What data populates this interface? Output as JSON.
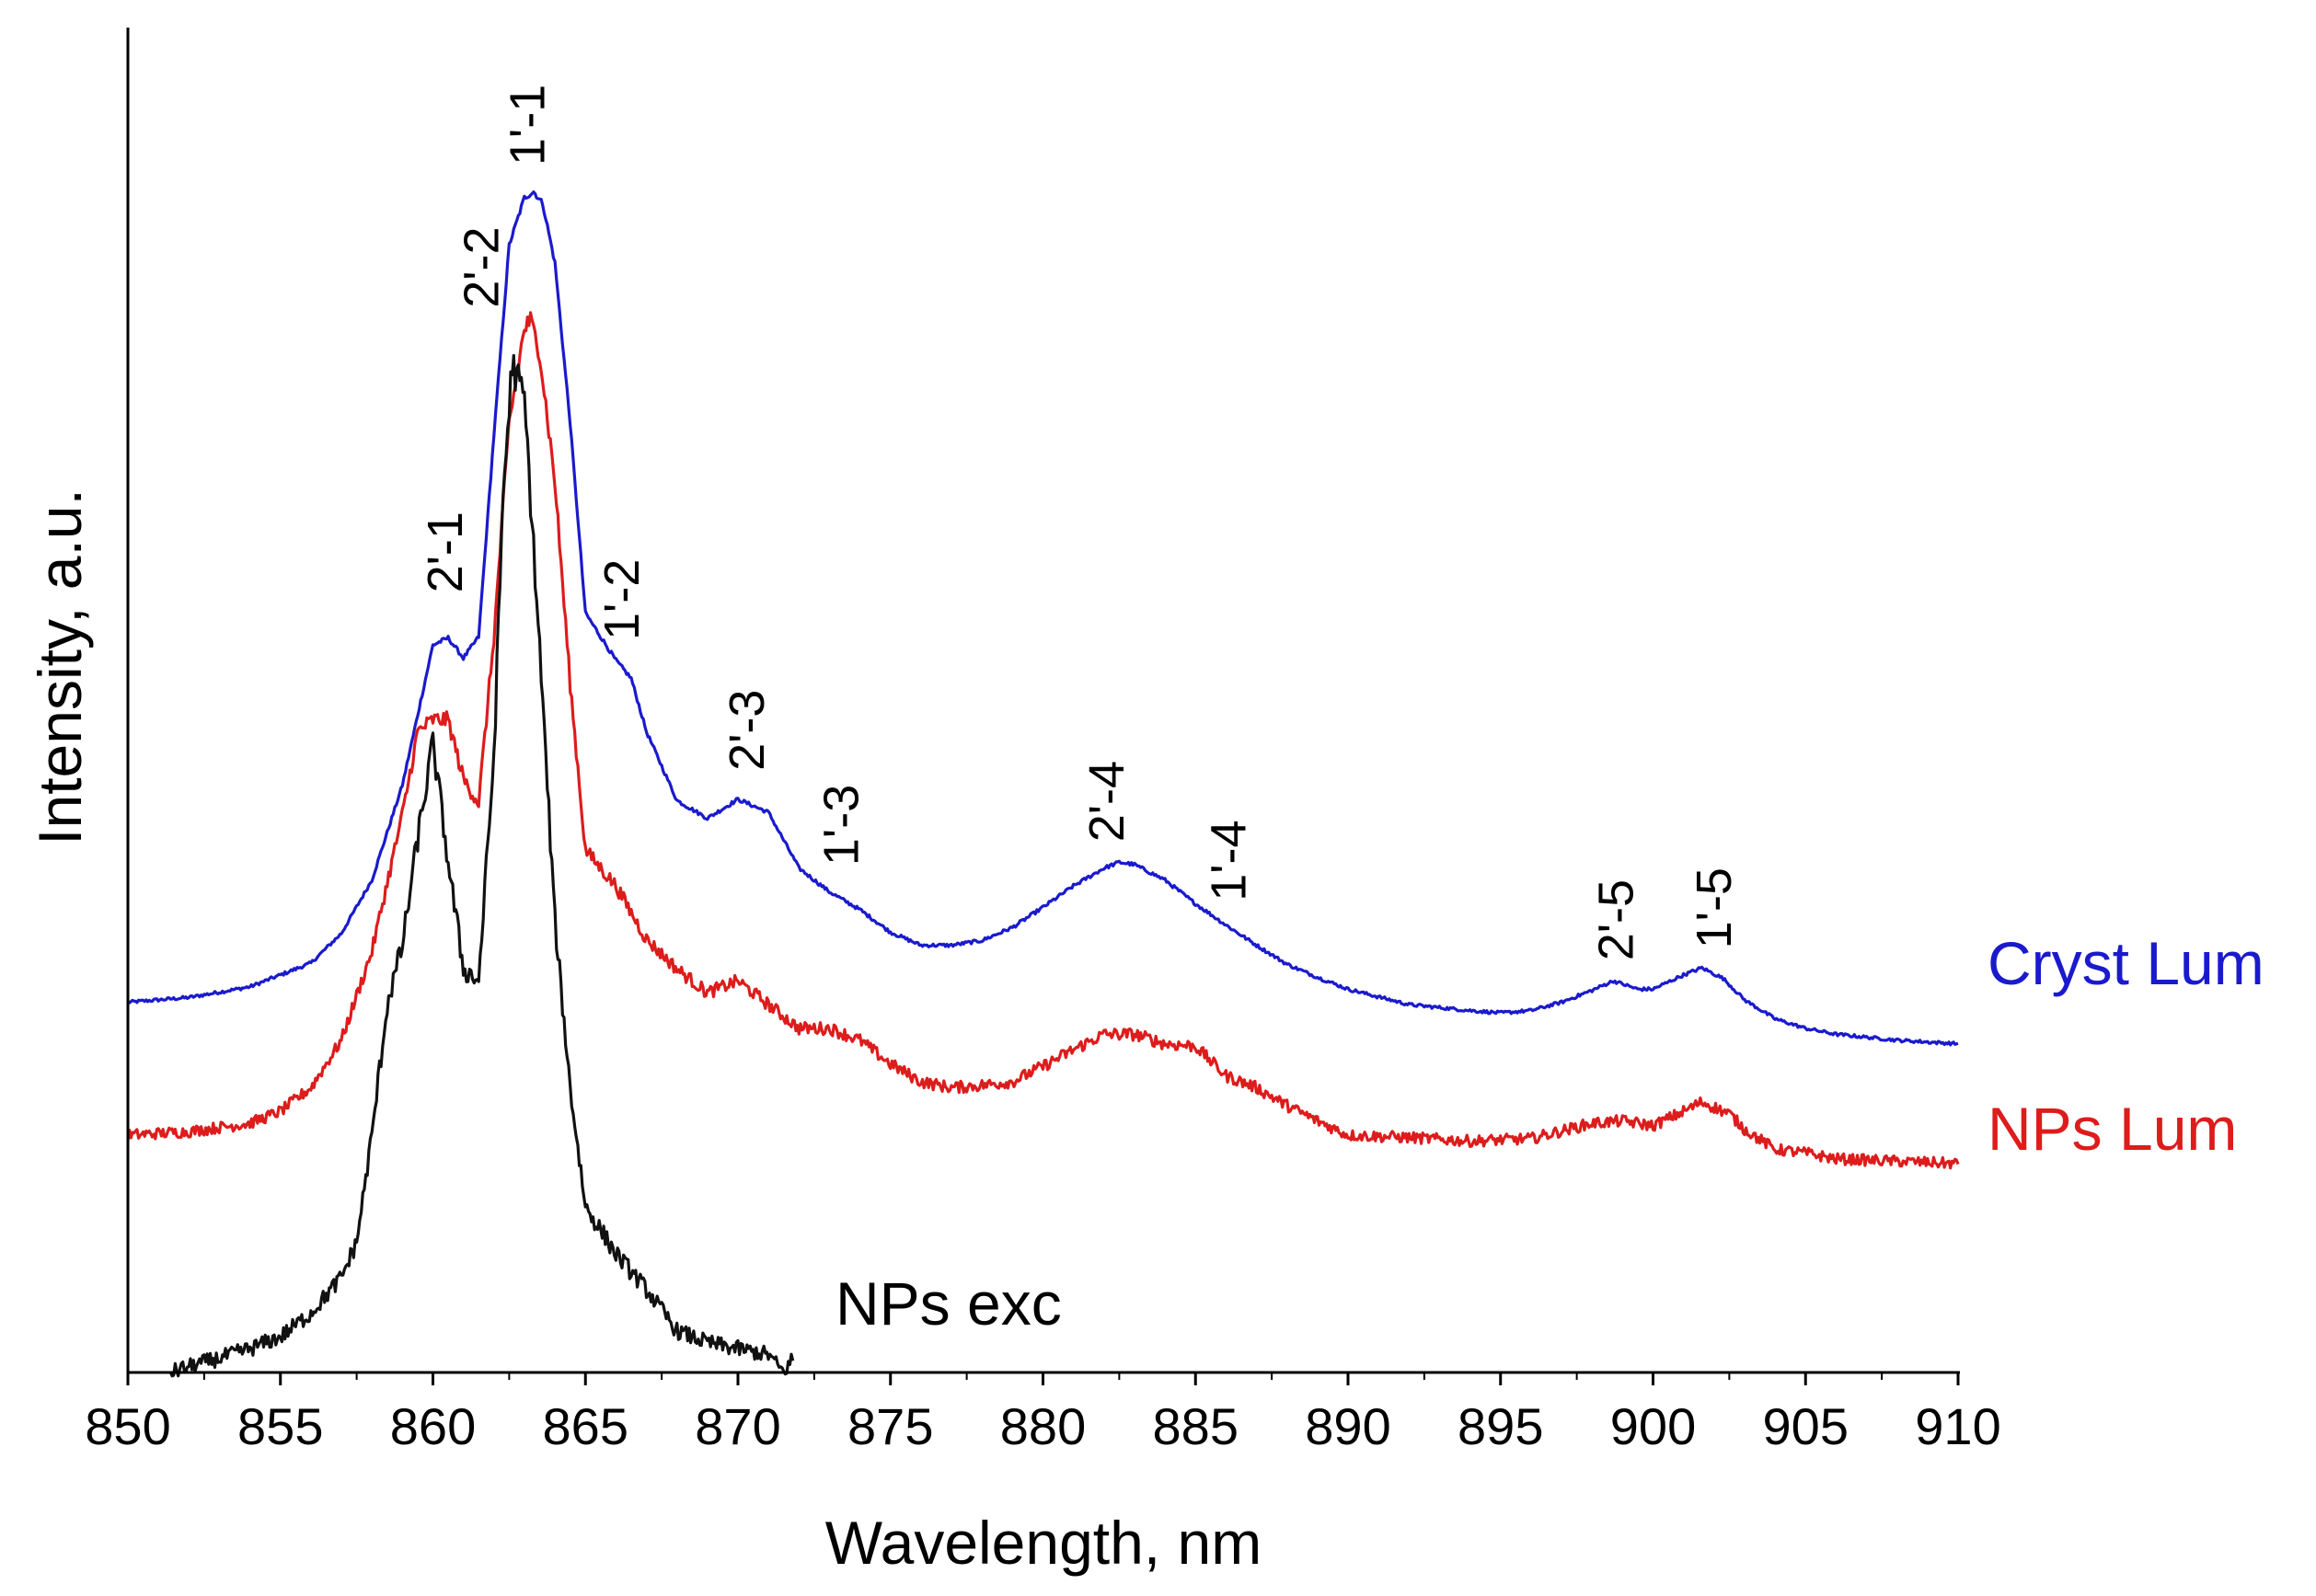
{
  "chart_data": {
    "type": "line",
    "title": "",
    "xlabel": "Wavelength, nm",
    "ylabel": "Intensity, a.u.",
    "xlim": [
      850,
      910
    ],
    "ylim": [
      0,
      1
    ],
    "grid": false,
    "x_ticks": [
      850,
      855,
      860,
      865,
      870,
      875,
      880,
      885,
      890,
      895,
      900,
      905,
      910
    ],
    "x_tick_labels": [
      "850",
      "855",
      "860",
      "865",
      "870",
      "875",
      "880",
      "885",
      "890",
      "895",
      "900",
      "905",
      "910"
    ],
    "series": [
      {
        "name": "Cryst Lum",
        "color": "#1a1acc",
        "noise": 0.0015,
        "x": [
          850,
          852,
          854,
          856,
          857,
          858,
          859,
          860,
          860.5,
          861,
          861.5,
          862,
          862.5,
          863,
          863.3,
          863.6,
          864,
          864.5,
          865,
          866,
          866.5,
          867,
          868,
          869,
          870,
          871,
          872,
          873,
          874,
          875,
          876,
          877,
          878,
          879,
          880,
          881,
          882,
          882.5,
          883,
          884,
          885,
          886,
          887,
          888,
          889,
          890,
          892,
          894,
          895,
          896,
          897,
          898,
          898.7,
          899.5,
          900,
          901,
          901.6,
          902.3,
          903,
          904,
          905,
          906,
          908,
          910
        ],
        "y": [
          0.312,
          0.316,
          0.325,
          0.345,
          0.37,
          0.415,
          0.495,
          0.613,
          0.619,
          0.602,
          0.62,
          0.79,
          0.95,
          0.99,
          0.995,
          0.985,
          0.935,
          0.8,
          0.64,
          0.6,
          0.585,
          0.54,
          0.482,
          0.467,
          0.483,
          0.472,
          0.425,
          0.405,
          0.39,
          0.371,
          0.36,
          0.36,
          0.364,
          0.375,
          0.392,
          0.41,
          0.425,
          0.43,
          0.428,
          0.415,
          0.395,
          0.377,
          0.36,
          0.344,
          0.333,
          0.323,
          0.31,
          0.305,
          0.303,
          0.305,
          0.312,
          0.322,
          0.33,
          0.323,
          0.323,
          0.335,
          0.341,
          0.332,
          0.314,
          0.298,
          0.29,
          0.285,
          0.28,
          0.277
        ]
      },
      {
        "name": "NPs Lum",
        "color": "#dd1c1c",
        "noise": 0.006,
        "x": [
          850,
          852,
          854,
          855,
          856,
          857,
          858,
          859,
          859.5,
          860,
          860.5,
          861,
          861.5,
          862,
          862.5,
          863,
          863.2,
          863.5,
          864,
          864.5,
          865,
          866,
          867,
          868,
          869,
          870,
          871,
          872,
          873,
          874,
          875,
          876,
          877,
          878,
          879,
          880,
          881,
          882,
          883,
          884,
          885,
          886,
          887,
          888,
          889,
          890,
          892,
          894,
          896,
          898,
          899,
          900,
          901,
          901.6,
          902.5,
          903,
          904,
          905,
          906,
          908,
          910
        ],
        "y": [
          0.2,
          0.203,
          0.21,
          0.22,
          0.24,
          0.28,
          0.355,
          0.47,
          0.54,
          0.55,
          0.55,
          0.5,
          0.48,
          0.62,
          0.8,
          0.88,
          0.886,
          0.86,
          0.75,
          0.58,
          0.44,
          0.41,
          0.365,
          0.34,
          0.32,
          0.33,
          0.31,
          0.29,
          0.29,
          0.28,
          0.26,
          0.245,
          0.24,
          0.242,
          0.245,
          0.258,
          0.272,
          0.285,
          0.285,
          0.277,
          0.275,
          0.25,
          0.24,
          0.225,
          0.212,
          0.2,
          0.198,
          0.195,
          0.197,
          0.21,
          0.212,
          0.208,
          0.22,
          0.228,
          0.218,
          0.205,
          0.188,
          0.185,
          0.18,
          0.178,
          0.176
        ]
      },
      {
        "name": "NPs exc",
        "color": "#111111",
        "noise": 0.011,
        "x": [
          851.4,
          852,
          853,
          854,
          855,
          856,
          857,
          857.5,
          858,
          858.5,
          859,
          859.5,
          860,
          860.5,
          861,
          861.5,
          862,
          862.3,
          862.6,
          863,
          863.5,
          864,
          864.5,
          865,
          865.5,
          866,
          867,
          868,
          869,
          870,
          871,
          871.5,
          871.8
        ],
        "y": [
          0.0,
          0.005,
          0.012,
          0.02,
          0.03,
          0.05,
          0.08,
          0.11,
          0.2,
          0.31,
          0.36,
          0.45,
          0.53,
          0.43,
          0.34,
          0.33,
          0.52,
          0.74,
          0.85,
          0.82,
          0.61,
          0.38,
          0.24,
          0.14,
          0.12,
          0.1,
          0.07,
          0.035,
          0.025,
          0.02,
          0.015,
          0.0,
          0.012
        ]
      }
    ],
    "peak_labels": [
      {
        "text": "2'-1",
        "x": 860.4,
        "y": 0.64
      },
      {
        "text": "2'-2",
        "x": 861.6,
        "y": 0.88
      },
      {
        "text": "1'-1",
        "x": 863.1,
        "y": 1.0
      },
      {
        "text": "1'-2",
        "x": 866.2,
        "y": 0.6
      },
      {
        "text": "2'-3",
        "x": 870.3,
        "y": 0.49
      },
      {
        "text": "1'-3",
        "x": 873.4,
        "y": 0.41
      },
      {
        "text": "2'-4",
        "x": 882.1,
        "y": 0.43
      },
      {
        "text": "1'-4",
        "x": 886.1,
        "y": 0.38
      },
      {
        "text": "2'-5",
        "x": 898.8,
        "y": 0.33
      },
      {
        "text": "1'-5",
        "x": 902.0,
        "y": 0.34
      }
    ],
    "annotations": [
      {
        "text": "Cryst Lum",
        "color": "#1a1acc"
      },
      {
        "text": "NPs Lum",
        "color": "#dd1c1c"
      },
      {
        "text": "NPs exc",
        "color": "#000000"
      }
    ]
  }
}
